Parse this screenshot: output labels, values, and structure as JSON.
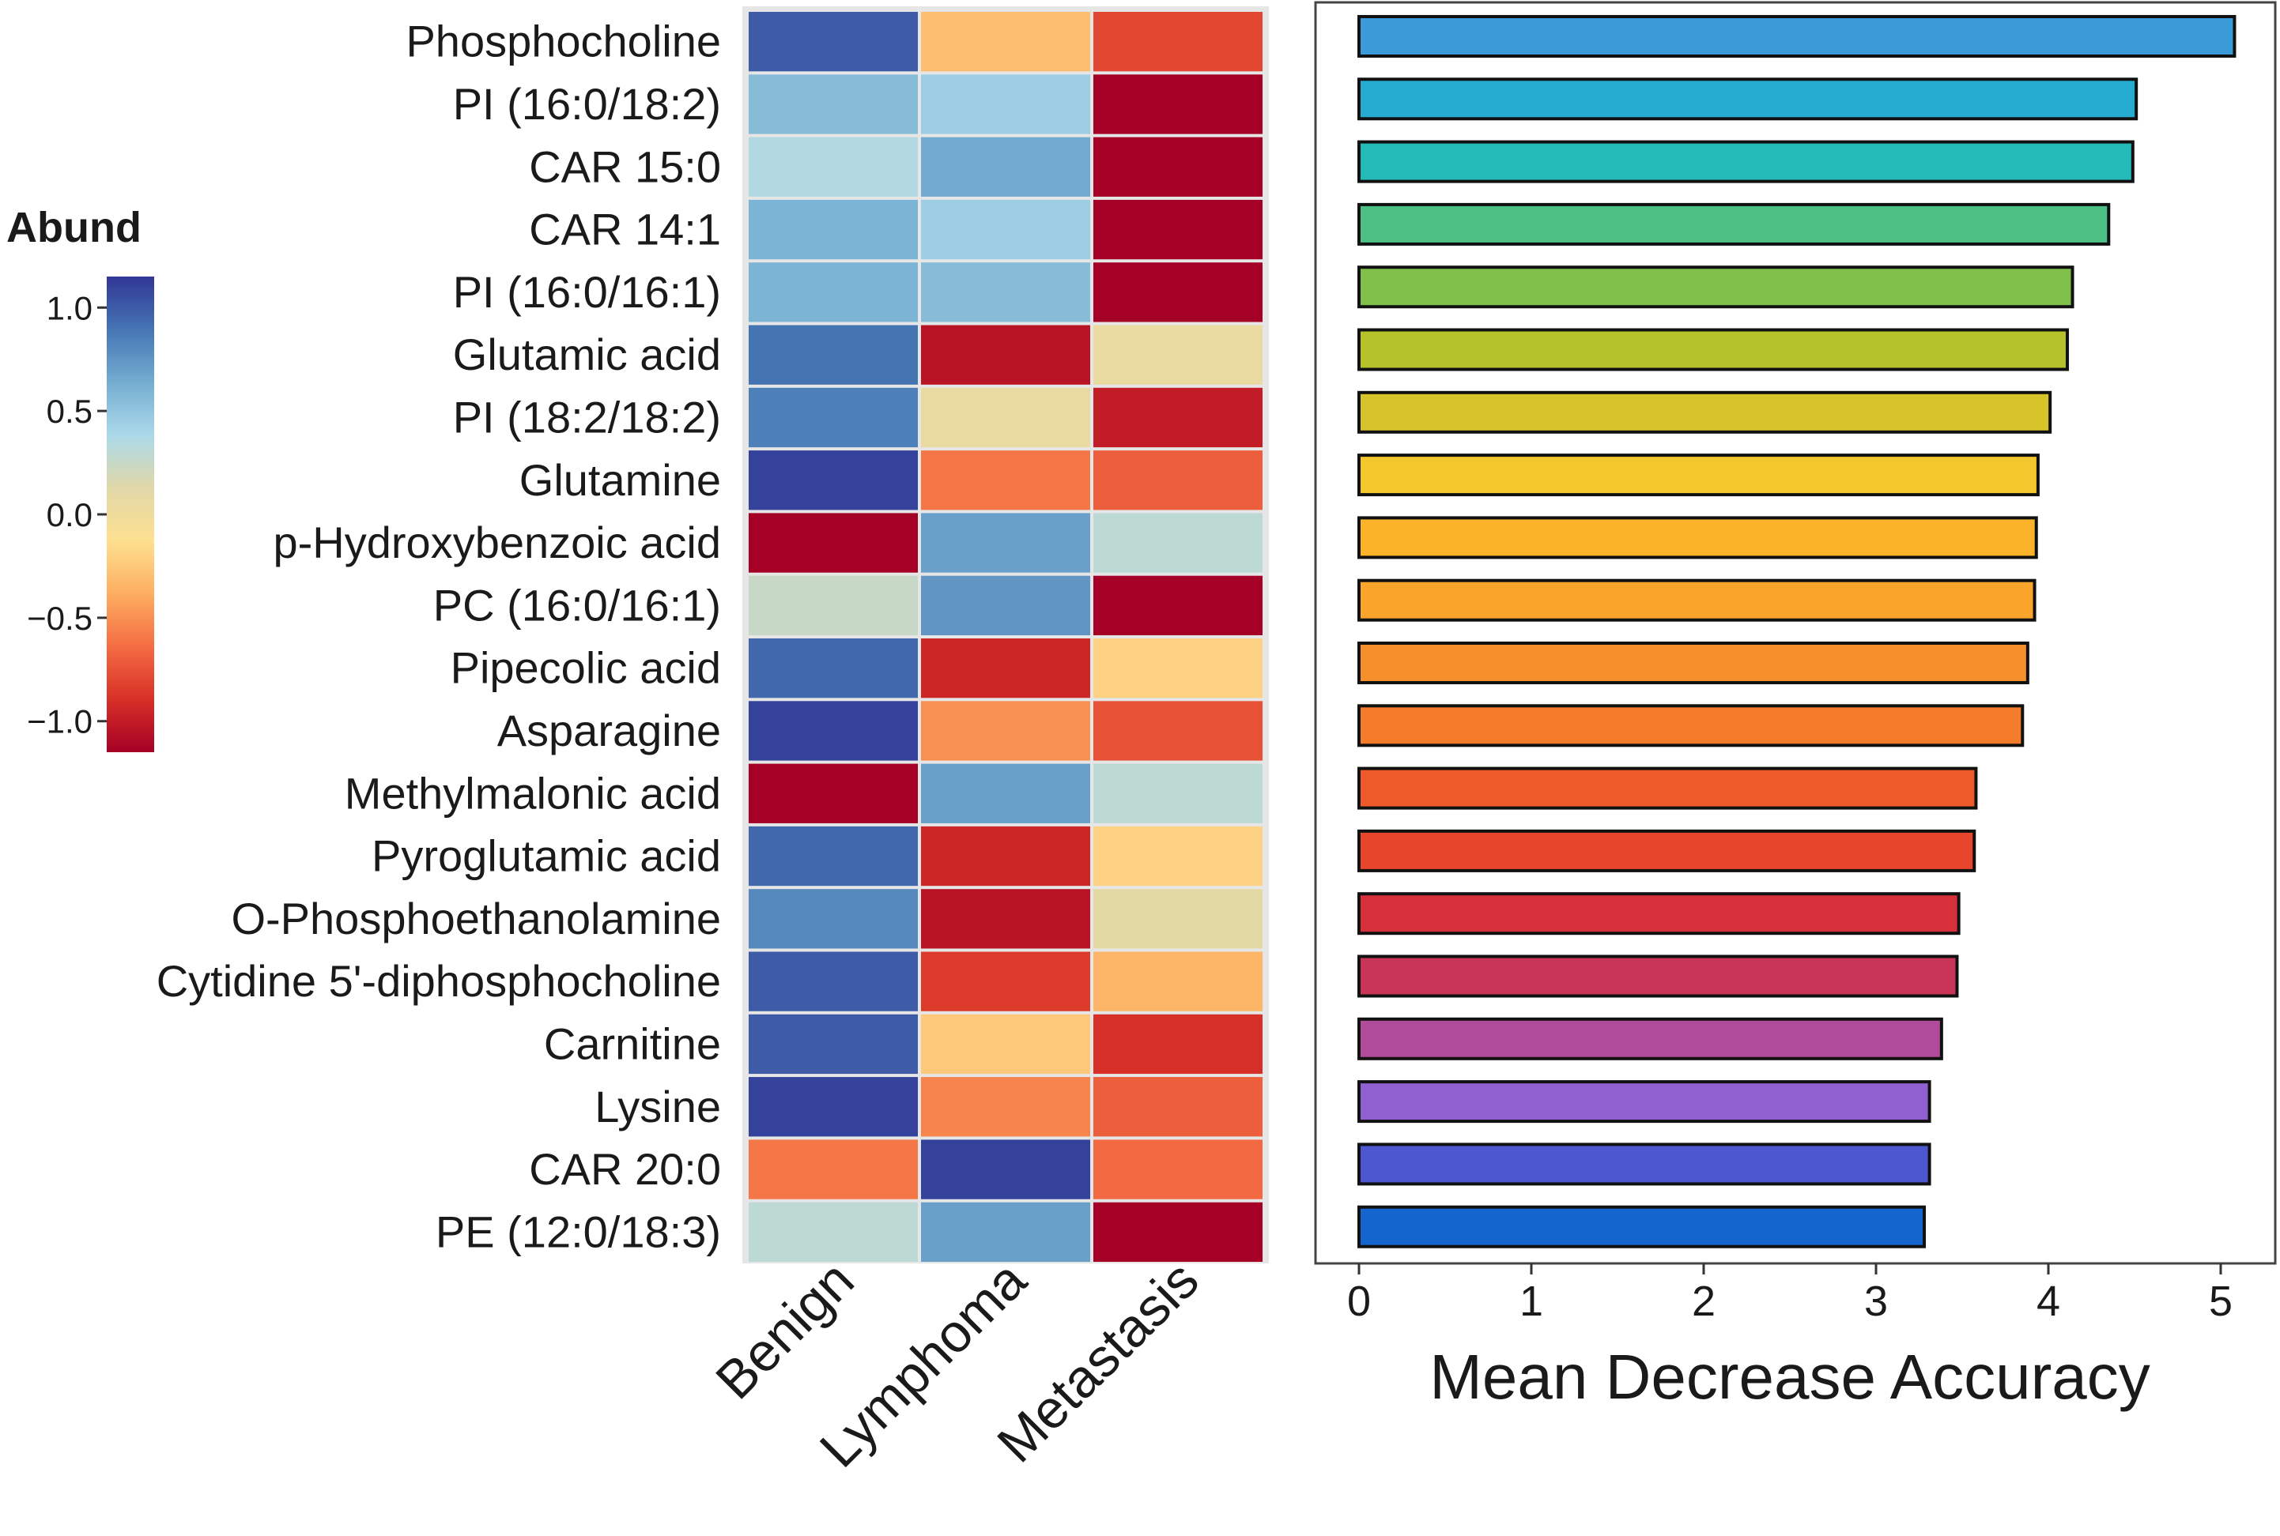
{
  "chart_data": [
    {
      "type": "heatmap",
      "title": "",
      "columns": [
        "Benign",
        "Lymphoma",
        "Metastasis"
      ],
      "rows": [
        "Phosphocholine",
        "PI (16:0/18:2)",
        "CAR 15:0",
        "CAR 14:1",
        "PI (16:0/16:1)",
        "Glutamic acid",
        "PI (18:2/18:2)",
        "Glutamine",
        "p-Hydroxybenzoic acid",
        "PC (16:0/16:1)",
        "Pipecolic acid",
        "Asparagine",
        "Methylmalonic acid",
        "Pyroglutamic acid",
        "O-Phosphoethanolamine",
        "Cytidine 5'-diphosphocholine",
        "Carnitine",
        "Lysine",
        "CAR 20:0",
        "PE (12:0/18:3)"
      ],
      "values": [
        [
          1.0,
          -0.3,
          -0.8
        ],
        [
          0.55,
          0.45,
          -1.15
        ],
        [
          0.35,
          0.65,
          -1.15
        ],
        [
          0.6,
          0.45,
          -1.15
        ],
        [
          0.6,
          0.55,
          -1.15
        ],
        [
          0.9,
          -1.05,
          0.05
        ],
        [
          0.85,
          0.05,
          -1.0
        ],
        [
          1.1,
          -0.6,
          -0.7
        ],
        [
          -1.15,
          0.7,
          0.3
        ],
        [
          0.25,
          0.75,
          -1.15
        ],
        [
          0.95,
          -0.95,
          -0.2
        ],
        [
          1.1,
          -0.5,
          -0.75
        ],
        [
          -1.15,
          0.7,
          0.3
        ],
        [
          0.95,
          -0.95,
          -0.2
        ],
        [
          0.8,
          -1.05,
          0.1
        ],
        [
          1.0,
          -0.85,
          -0.35
        ],
        [
          1.0,
          -0.25,
          -0.9
        ],
        [
          1.1,
          -0.55,
          -0.7
        ],
        [
          -0.6,
          1.1,
          -0.65
        ],
        [
          0.3,
          0.7,
          -1.15
        ]
      ],
      "legend": {
        "title": "Abund",
        "ticks": [
          1.0,
          0.5,
          0.0,
          -0.5,
          -1.0
        ],
        "tick_labels": [
          "1.0",
          "0.5",
          "0.0",
          "−0.5",
          "−1.0"
        ],
        "range": [
          -1.15,
          1.15
        ],
        "colors": [
          "#a50026",
          "#d73027",
          "#f46d43",
          "#fdae61",
          "#fee090",
          "#e0d8a8",
          "#abd9e9",
          "#74add1",
          "#4575b4",
          "#313695"
        ]
      }
    },
    {
      "type": "bar",
      "orientation": "horizontal",
      "xlabel": "Mean Decrease Accuracy",
      "xlim": [
        0,
        5.2
      ],
      "xticks": [
        0,
        1,
        2,
        3,
        4,
        5
      ],
      "categories": [
        "Phosphocholine",
        "PI (16:0/18:2)",
        "CAR 15:0",
        "CAR 14:1",
        "PI (16:0/16:1)",
        "Glutamic acid",
        "PI (18:2/18:2)",
        "Glutamine",
        "p-Hydroxybenzoic acid",
        "PC (16:0/16:1)",
        "Pipecolic acid",
        "Asparagine",
        "Methylmalonic acid",
        "Pyroglutamic acid",
        "O-Phosphoethanolamine",
        "Cytidine 5'-diphosphocholine",
        "Carnitine",
        "Lysine",
        "CAR 20:0",
        "PE (12:0/18:3)"
      ],
      "values": [
        5.08,
        4.51,
        4.49,
        4.35,
        4.14,
        4.11,
        4.01,
        3.94,
        3.93,
        3.92,
        3.88,
        3.85,
        3.58,
        3.57,
        3.48,
        3.47,
        3.38,
        3.31,
        3.31,
        3.28
      ],
      "colors": [
        "#3b9bd9",
        "#26acd0",
        "#24bab8",
        "#4cbf85",
        "#80bf4a",
        "#b5c22a",
        "#d6c42a",
        "#f4c72c",
        "#fbb42a",
        "#fba42c",
        "#f7902b",
        "#f47c2a",
        "#ee5a2a",
        "#e8462c",
        "#d6303a",
        "#c83556",
        "#b04b9a",
        "#9060d0",
        "#4d58d0",
        "#1565cf"
      ]
    }
  ]
}
